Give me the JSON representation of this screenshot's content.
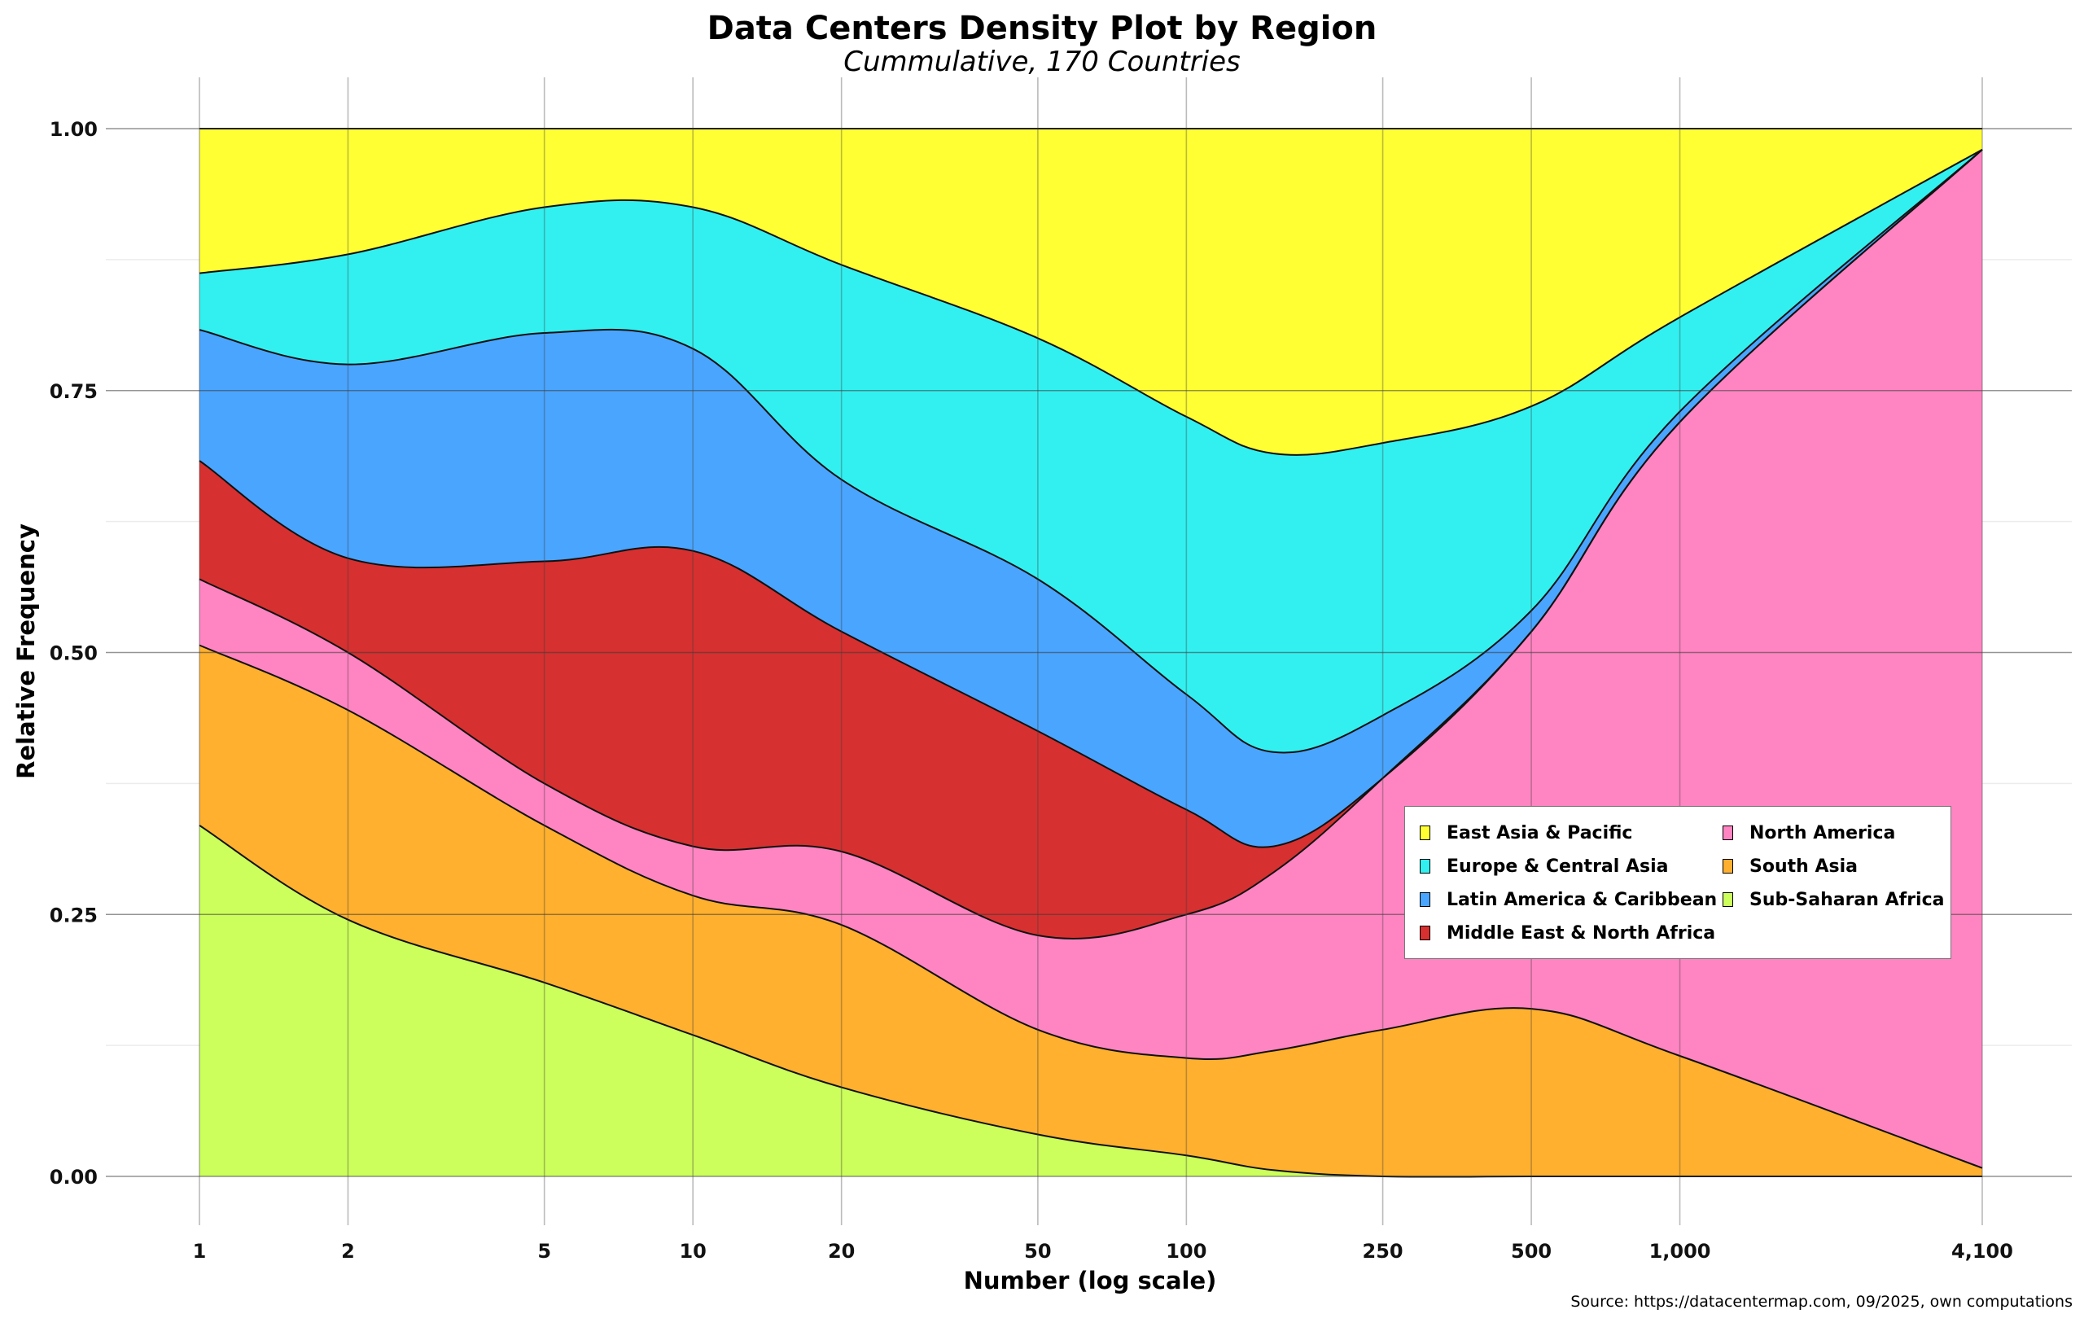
{
  "chart_data": {
    "type": "area",
    "title": "Data Centers Density Plot by Region",
    "subtitle": "Cummulative, 170 Countries",
    "xlabel": "Number (log scale)",
    "ylabel": "Relative Frequency",
    "source": "Source: https://datacentermap.com, 09/2025, own computations",
    "x_scale": "log",
    "xlim": [
      1,
      4100
    ],
    "ylim": [
      0,
      1
    ],
    "x_ticks": [
      1,
      2,
      5,
      10,
      20,
      50,
      100,
      250,
      500,
      1000,
      4100
    ],
    "x_tick_labels": [
      "1",
      "2",
      "5",
      "10",
      "20",
      "50",
      "100",
      "250",
      "500",
      "1,000",
      "4,100"
    ],
    "y_ticks": [
      0,
      0.25,
      0.5,
      0.75,
      1.0
    ],
    "y_tick_labels": [
      "0.00",
      "0.25",
      "0.50",
      "0.75",
      "1.00"
    ],
    "legend_position": "bottom-right",
    "stacking": "cumulative (fill), bottom to top: Sub-Saharan Africa, South Asia, North America, Middle East & North Africa, Latin America & Caribbean, Europe & Central Asia, East Asia & Pacific",
    "x": [
      1,
      2,
      5,
      10,
      20,
      50,
      100,
      150,
      250,
      500,
      1000,
      4100
    ],
    "series": [
      {
        "name": "Sub-Saharan Africa",
        "color": "#CCFF5C",
        "upper": [
          0.335,
          0.245,
          0.185,
          0.135,
          0.085,
          0.04,
          0.02,
          0.006,
          0.0,
          0.0,
          0.0,
          0.0
        ]
      },
      {
        "name": "South Asia",
        "color": "#FFB02E",
        "upper": [
          0.507,
          0.445,
          0.335,
          0.268,
          0.24,
          0.14,
          0.113,
          0.12,
          0.14,
          0.16,
          0.115,
          0.008
        ]
      },
      {
        "name": "North America",
        "color": "#FF85C2",
        "upper": [
          0.57,
          0.5,
          0.375,
          0.315,
          0.31,
          0.23,
          0.25,
          0.29,
          0.38,
          0.52,
          0.72,
          0.98
        ]
      },
      {
        "name": "Middle East & North Africa",
        "color": "#D63030",
        "upper": [
          0.683,
          0.59,
          0.587,
          0.597,
          0.52,
          0.425,
          0.35,
          0.315,
          0.38,
          0.52,
          0.72,
          0.98
        ]
      },
      {
        "name": "Latin America & Caribbean",
        "color": "#4AA5FF",
        "upper": [
          0.808,
          0.775,
          0.805,
          0.79,
          0.665,
          0.57,
          0.46,
          0.405,
          0.44,
          0.54,
          0.73,
          0.98
        ]
      },
      {
        "name": "Europe & Central Asia",
        "color": "#33F0F0",
        "upper": [
          0.862,
          0.88,
          0.925,
          0.925,
          0.87,
          0.8,
          0.725,
          0.69,
          0.7,
          0.735,
          0.82,
          0.98
        ]
      },
      {
        "name": "East Asia & Pacific",
        "color": "#FFFF33",
        "upper": [
          1.0,
          1.0,
          1.0,
          1.0,
          1.0,
          1.0,
          1.0,
          1.0,
          1.0,
          1.0,
          1.0,
          1.0
        ]
      }
    ],
    "legend_order": [
      "East Asia & Pacific",
      "Europe & Central Asia",
      "Latin America & Caribbean",
      "Middle East & North Africa",
      "North America",
      "South Asia",
      "Sub-Saharan Africa"
    ]
  }
}
